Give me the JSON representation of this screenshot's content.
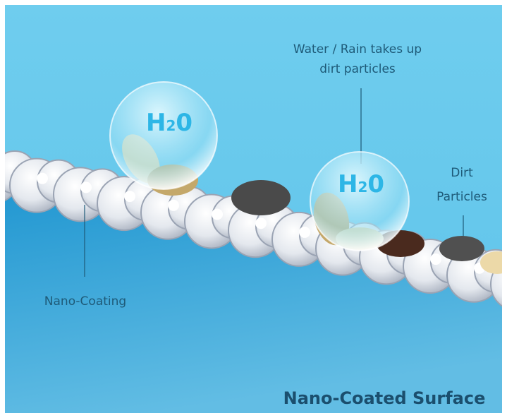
{
  "callouts": {
    "water": [
      "Water / Rain takes up",
      "dirt particles"
    ],
    "dirt": [
      "Dirt",
      "Particles"
    ],
    "coating": "Nano-Coating"
  },
  "droplets": [
    {
      "label": [
        "H",
        "2",
        "0"
      ]
    },
    {
      "label": [
        "H",
        "2",
        "0"
      ]
    }
  ],
  "caption": "Nano-Coated Surface"
}
